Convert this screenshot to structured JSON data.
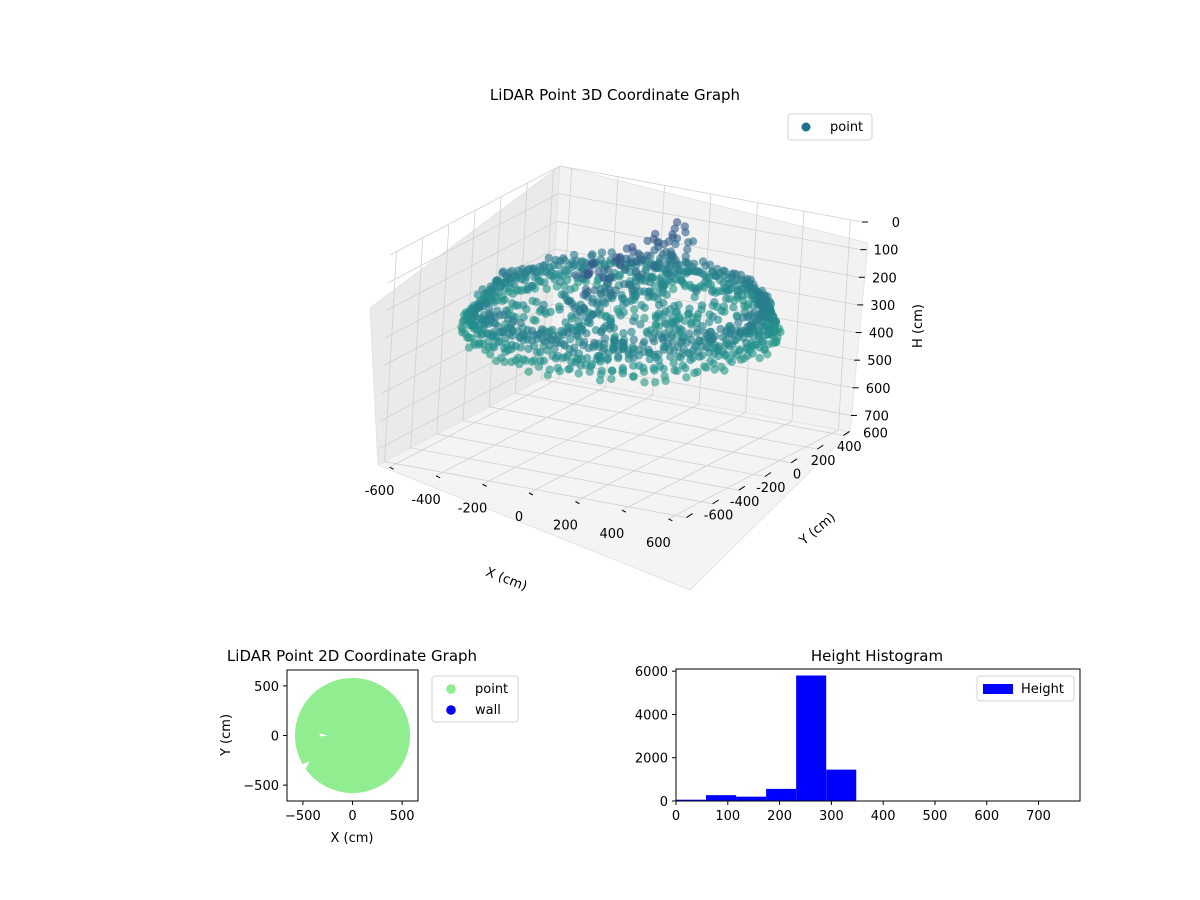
{
  "chart_data": [
    {
      "type": "scatter",
      "projection": "3d",
      "title": "LiDAR Point 3D Coordinate Graph",
      "xlabel": "X (cm)",
      "ylabel": "Y (cm)",
      "zlabel": "H (cm)",
      "xlim": [
        -650,
        650
      ],
      "ylim": [
        -650,
        650
      ],
      "zlim": [
        760,
        0
      ],
      "x_ticks": [
        -600,
        -400,
        -200,
        0,
        200,
        400,
        600
      ],
      "y_ticks": [
        -600,
        -400,
        -200,
        0,
        200,
        400,
        600
      ],
      "z_ticks": [
        0,
        100,
        200,
        300,
        400,
        500,
        600,
        700
      ],
      "z_inverted": true,
      "colormap": "viridis",
      "legend": {
        "location": "upper-right",
        "entries": [
          {
            "label": "point",
            "color": "#1f6e8c"
          }
        ]
      },
      "series": [
        {
          "name": "point",
          "description_of_shape": "ring of wall points around the origin at heights ~200-350 cm, with a dense low-height vertical slab near x≈-80..0",
          "rings": [
            {
              "radius": 600,
              "z": 330,
              "theta_start": -160,
              "theta_end": 200
            },
            {
              "radius": 580,
              "z": 280,
              "theta_start": -150,
              "theta_end": 190
            },
            {
              "radius": 560,
              "z": 250,
              "theta_start": -140,
              "theta_end": 180
            }
          ],
          "slab": {
            "x": [
              -80,
              0
            ],
            "y": [
              -300,
              600
            ],
            "z": [
              0,
              300
            ]
          }
        }
      ]
    },
    {
      "type": "scatter",
      "title": "LiDAR Point 2D Coordinate Graph",
      "xlabel": "X (cm)",
      "ylabel": "Y (cm)",
      "xlim": [
        -660,
        660
      ],
      "ylim": [
        -660,
        660
      ],
      "x_ticks": [
        -500,
        0,
        500
      ],
      "y_ticks": [
        -500,
        0,
        500
      ],
      "legend": {
        "location": "outside-right",
        "entries": [
          {
            "label": "point",
            "color": "#90ee90"
          },
          {
            "label": "wall",
            "color": "#0000ff"
          }
        ]
      },
      "series": [
        {
          "name": "point",
          "color": "#90ee90",
          "shape": "filled-disk",
          "radius": 580
        },
        {
          "name": "wall",
          "color": "#0000ff",
          "points": []
        }
      ]
    },
    {
      "type": "histogram",
      "title": "Height Histogram",
      "xlabel": "",
      "ylabel": "",
      "xlim": [
        0,
        780
      ],
      "ylim": [
        0,
        6100
      ],
      "x_ticks": [
        0,
        100,
        200,
        300,
        400,
        500,
        600,
        700
      ],
      "y_ticks": [
        0,
        2000,
        4000,
        6000
      ],
      "legend": {
        "location": "upper-right",
        "entries": [
          {
            "label": "Height",
            "color": "#0000ff"
          }
        ]
      },
      "bin_width": 58,
      "bins": [
        {
          "x0": 0,
          "x1": 58,
          "count": 60
        },
        {
          "x0": 58,
          "x1": 116,
          "count": 270
        },
        {
          "x0": 116,
          "x1": 174,
          "count": 200
        },
        {
          "x0": 174,
          "x1": 232,
          "count": 560
        },
        {
          "x0": 232,
          "x1": 290,
          "count": 5800
        },
        {
          "x0": 290,
          "x1": 348,
          "count": 1450
        },
        {
          "x0": 348,
          "x1": 406,
          "count": 2
        },
        {
          "x0": 406,
          "x1": 464,
          "count": 0
        },
        {
          "x0": 464,
          "x1": 522,
          "count": 0
        },
        {
          "x0": 522,
          "x1": 580,
          "count": 0
        },
        {
          "x0": 580,
          "x1": 638,
          "count": 0
        },
        {
          "x0": 638,
          "x1": 696,
          "count": 0
        },
        {
          "x0": 696,
          "x1": 754,
          "count": 1
        }
      ]
    }
  ]
}
